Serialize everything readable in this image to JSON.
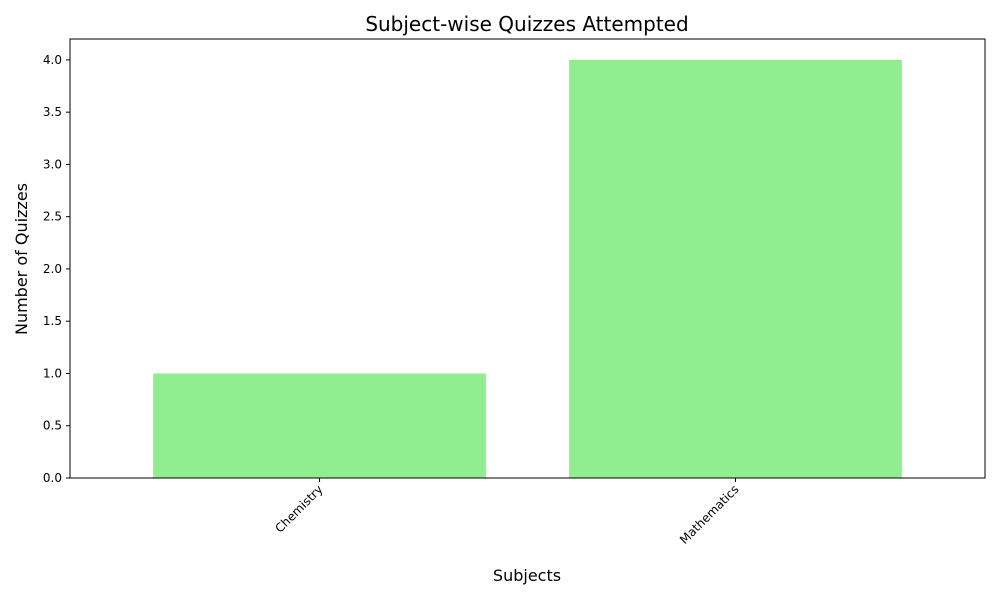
{
  "chart_data": {
    "type": "bar",
    "title": "Subject-wise Quizzes Attempted",
    "xlabel": "Subjects",
    "ylabel": "Number of Quizzes",
    "categories": [
      "Chemistry",
      "Mathematics"
    ],
    "values": [
      1,
      4
    ],
    "ylim": [
      0,
      4.2
    ],
    "yticks": [
      "0.0",
      "0.5",
      "1.0",
      "1.5",
      "2.0",
      "2.5",
      "3.0",
      "3.5",
      "4.0"
    ],
    "ytick_values": [
      0,
      0.5,
      1,
      1.5,
      2,
      2.5,
      3,
      3.5,
      4
    ],
    "grid": false,
    "bar_color": "#90ee90",
    "xtick_rotation": 45
  }
}
